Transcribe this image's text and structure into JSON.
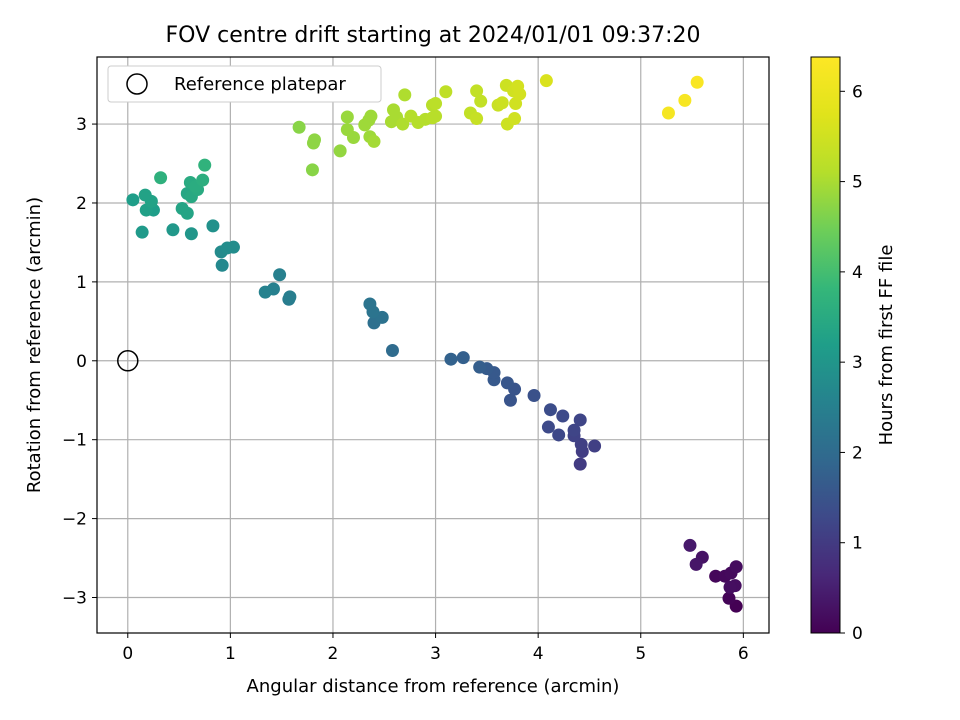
{
  "chart_data": {
    "type": "scatter",
    "title": "FOV centre drift starting at 2024/01/01 09:37:20",
    "xlabel": "Angular distance from reference (arcmin)",
    "ylabel": "Rotation from reference (arcmin)",
    "xlim": [
      -0.3,
      6.25
    ],
    "ylim": [
      -3.45,
      3.85
    ],
    "xticks": [
      0,
      1,
      2,
      3,
      4,
      5,
      6
    ],
    "yticks": [
      -3,
      -2,
      -1,
      0,
      1,
      2,
      3
    ],
    "grid": true,
    "legend": {
      "location": "top-left",
      "entries": [
        "Reference platepar"
      ]
    },
    "reference_point": {
      "x": 0,
      "y": 0,
      "label": "Reference platepar"
    },
    "colorbar": {
      "label": "Hours from first FF file",
      "colormap": "viridis",
      "range": [
        0,
        6.38
      ],
      "ticks": [
        0,
        1,
        2,
        3,
        4,
        5,
        6
      ]
    },
    "points": [
      {
        "x": 5.93,
        "y": -3.11,
        "c": 0.0
      },
      {
        "x": 5.86,
        "y": -3.01,
        "c": 0.05
      },
      {
        "x": 5.73,
        "y": -2.73,
        "c": 0.1
      },
      {
        "x": 5.82,
        "y": -2.73,
        "c": 0.12
      },
      {
        "x": 5.88,
        "y": -2.69,
        "c": 0.15
      },
      {
        "x": 5.93,
        "y": -2.61,
        "c": 0.18
      },
      {
        "x": 5.92,
        "y": -2.85,
        "c": 0.2
      },
      {
        "x": 5.87,
        "y": -2.87,
        "c": 0.22
      },
      {
        "x": 5.6,
        "y": -2.49,
        "c": 0.3
      },
      {
        "x": 5.54,
        "y": -2.58,
        "c": 0.35
      },
      {
        "x": 5.48,
        "y": -2.34,
        "c": 0.4
      },
      {
        "x": 4.41,
        "y": -1.31,
        "c": 1.0
      },
      {
        "x": 4.43,
        "y": -1.15,
        "c": 1.05
      },
      {
        "x": 4.55,
        "y": -1.08,
        "c": 1.1
      },
      {
        "x": 4.42,
        "y": -1.06,
        "c": 1.1
      },
      {
        "x": 4.35,
        "y": -0.95,
        "c": 1.15
      },
      {
        "x": 4.35,
        "y": -0.88,
        "c": 1.2
      },
      {
        "x": 4.41,
        "y": -0.75,
        "c": 1.2
      },
      {
        "x": 4.2,
        "y": -0.94,
        "c": 1.25
      },
      {
        "x": 4.1,
        "y": -0.84,
        "c": 1.3
      },
      {
        "x": 4.24,
        "y": -0.7,
        "c": 1.3
      },
      {
        "x": 4.12,
        "y": -0.62,
        "c": 1.35
      },
      {
        "x": 3.96,
        "y": -0.44,
        "c": 1.45
      },
      {
        "x": 3.73,
        "y": -0.5,
        "c": 1.5
      },
      {
        "x": 3.77,
        "y": -0.36,
        "c": 1.5
      },
      {
        "x": 3.7,
        "y": -0.28,
        "c": 1.55
      },
      {
        "x": 3.57,
        "y": -0.24,
        "c": 1.6
      },
      {
        "x": 3.57,
        "y": -0.15,
        "c": 1.6
      },
      {
        "x": 3.5,
        "y": -0.1,
        "c": 1.65
      },
      {
        "x": 3.43,
        "y": -0.08,
        "c": 1.7
      },
      {
        "x": 3.27,
        "y": 0.04,
        "c": 1.75
      },
      {
        "x": 3.15,
        "y": 0.02,
        "c": 1.8
      },
      {
        "x": 2.58,
        "y": 0.13,
        "c": 2.0
      },
      {
        "x": 2.4,
        "y": 0.48,
        "c": 2.1
      },
      {
        "x": 2.48,
        "y": 0.55,
        "c": 2.15
      },
      {
        "x": 2.39,
        "y": 0.62,
        "c": 2.2
      },
      {
        "x": 2.36,
        "y": 0.72,
        "c": 2.2
      },
      {
        "x": 1.57,
        "y": 0.78,
        "c": 2.4
      },
      {
        "x": 1.58,
        "y": 0.81,
        "c": 2.45
      },
      {
        "x": 1.48,
        "y": 1.09,
        "c": 2.5
      },
      {
        "x": 1.42,
        "y": 0.91,
        "c": 2.5
      },
      {
        "x": 1.34,
        "y": 0.87,
        "c": 2.55
      },
      {
        "x": 0.92,
        "y": 1.21,
        "c": 2.7
      },
      {
        "x": 0.91,
        "y": 1.38,
        "c": 2.75
      },
      {
        "x": 0.97,
        "y": 1.43,
        "c": 2.8
      },
      {
        "x": 1.03,
        "y": 1.44,
        "c": 2.8
      },
      {
        "x": 0.83,
        "y": 1.71,
        "c": 2.9
      },
      {
        "x": 0.62,
        "y": 1.61,
        "c": 3.0
      },
      {
        "x": 0.44,
        "y": 1.66,
        "c": 3.05
      },
      {
        "x": 0.14,
        "y": 1.63,
        "c": 3.1
      },
      {
        "x": 0.05,
        "y": 2.04,
        "c": 3.2
      },
      {
        "x": 0.25,
        "y": 1.91,
        "c": 3.2
      },
      {
        "x": 0.18,
        "y": 1.91,
        "c": 3.25
      },
      {
        "x": 0.23,
        "y": 2.02,
        "c": 3.3
      },
      {
        "x": 0.17,
        "y": 2.1,
        "c": 3.3
      },
      {
        "x": 0.53,
        "y": 1.93,
        "c": 3.35
      },
      {
        "x": 0.58,
        "y": 1.87,
        "c": 3.35
      },
      {
        "x": 0.58,
        "y": 2.12,
        "c": 3.4
      },
      {
        "x": 0.62,
        "y": 2.08,
        "c": 3.45
      },
      {
        "x": 0.61,
        "y": 2.26,
        "c": 3.5
      },
      {
        "x": 0.68,
        "y": 2.17,
        "c": 3.5
      },
      {
        "x": 0.66,
        "y": 2.21,
        "c": 3.55
      },
      {
        "x": 0.73,
        "y": 2.29,
        "c": 3.6
      },
      {
        "x": 0.75,
        "y": 2.48,
        "c": 3.7
      },
      {
        "x": 0.32,
        "y": 2.32,
        "c": 3.65
      },
      {
        "x": 1.8,
        "y": 2.42,
        "c": 4.7
      },
      {
        "x": 1.81,
        "y": 2.76,
        "c": 4.75
      },
      {
        "x": 1.82,
        "y": 2.8,
        "c": 4.75
      },
      {
        "x": 1.67,
        "y": 2.96,
        "c": 4.7
      },
      {
        "x": 2.07,
        "y": 2.66,
        "c": 4.8
      },
      {
        "x": 2.2,
        "y": 2.83,
        "c": 4.85
      },
      {
        "x": 2.14,
        "y": 2.93,
        "c": 4.85
      },
      {
        "x": 2.14,
        "y": 3.09,
        "c": 4.85
      },
      {
        "x": 2.31,
        "y": 2.99,
        "c": 4.9
      },
      {
        "x": 2.35,
        "y": 3.05,
        "c": 4.9
      },
      {
        "x": 2.37,
        "y": 3.1,
        "c": 4.9
      },
      {
        "x": 2.36,
        "y": 2.84,
        "c": 4.9
      },
      {
        "x": 2.4,
        "y": 2.78,
        "c": 4.95
      },
      {
        "x": 2.57,
        "y": 3.03,
        "c": 5.0
      },
      {
        "x": 2.59,
        "y": 3.18,
        "c": 5.0
      },
      {
        "x": 2.62,
        "y": 3.09,
        "c": 5.0
      },
      {
        "x": 2.68,
        "y": 3.0,
        "c": 5.05
      },
      {
        "x": 2.7,
        "y": 3.37,
        "c": 5.05
      },
      {
        "x": 2.76,
        "y": 3.1,
        "c": 5.1
      },
      {
        "x": 2.83,
        "y": 3.02,
        "c": 5.1
      },
      {
        "x": 2.9,
        "y": 3.06,
        "c": 5.1
      },
      {
        "x": 2.97,
        "y": 3.08,
        "c": 5.15
      },
      {
        "x": 3.0,
        "y": 3.1,
        "c": 5.15
      },
      {
        "x": 2.97,
        "y": 3.24,
        "c": 5.15
      },
      {
        "x": 3.0,
        "y": 3.26,
        "c": 5.2
      },
      {
        "x": 3.1,
        "y": 3.41,
        "c": 5.25
      },
      {
        "x": 3.34,
        "y": 3.14,
        "c": 5.3
      },
      {
        "x": 3.4,
        "y": 3.07,
        "c": 5.35
      },
      {
        "x": 3.4,
        "y": 3.42,
        "c": 5.3
      },
      {
        "x": 3.44,
        "y": 3.29,
        "c": 5.3
      },
      {
        "x": 3.61,
        "y": 3.24,
        "c": 5.4
      },
      {
        "x": 3.65,
        "y": 3.27,
        "c": 5.45
      },
      {
        "x": 3.69,
        "y": 3.49,
        "c": 5.45
      },
      {
        "x": 3.7,
        "y": 3.0,
        "c": 5.45
      },
      {
        "x": 3.77,
        "y": 3.07,
        "c": 5.5
      },
      {
        "x": 3.78,
        "y": 3.26,
        "c": 5.5
      },
      {
        "x": 3.76,
        "y": 3.42,
        "c": 5.5
      },
      {
        "x": 3.8,
        "y": 3.48,
        "c": 5.55
      },
      {
        "x": 3.82,
        "y": 3.38,
        "c": 5.55
      },
      {
        "x": 4.08,
        "y": 3.55,
        "c": 5.65
      },
      {
        "x": 5.27,
        "y": 3.14,
        "c": 6.2
      },
      {
        "x": 5.43,
        "y": 3.3,
        "c": 6.25
      },
      {
        "x": 5.55,
        "y": 3.53,
        "c": 6.3
      }
    ]
  }
}
